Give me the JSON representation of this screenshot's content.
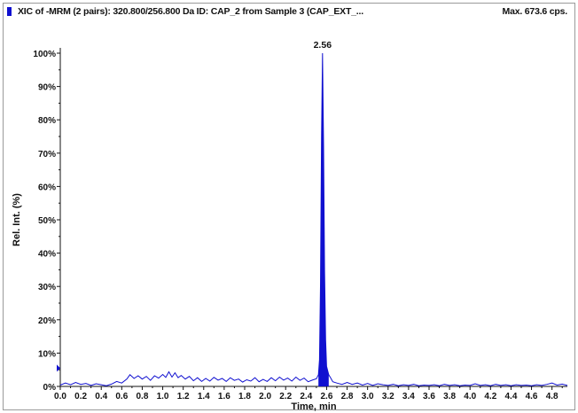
{
  "header": {
    "title": "XIC of -MRM (2 pairs): 320.800/256.800 Da ID: CAP_2 from Sample 3 (CAP_EXT_...",
    "max_text": "Max. 673.6 cps."
  },
  "colors": {
    "trace": "#1010d0",
    "axis": "#111111"
  },
  "chart_data": {
    "type": "line",
    "title": "XIC of -MRM (2 pairs): 320.800/256.800 Da ID: CAP_2 from Sample 3 (CAP_EXT_...",
    "xlabel": "Time, min",
    "ylabel": "Rel. Int. (%)",
    "xlim": [
      0.0,
      4.95
    ],
    "ylim": [
      0,
      100
    ],
    "x_ticks": [
      "0.0",
      "0.2",
      "0.4",
      "0.6",
      "0.8",
      "1.0",
      "1.2",
      "1.4",
      "1.6",
      "1.8",
      "2.0",
      "2.2",
      "2.4",
      "2.6",
      "2.8",
      "3.0",
      "3.2",
      "3.4",
      "3.6",
      "3.8",
      "4.0",
      "4.2",
      "4.4",
      "4.6",
      "4.8"
    ],
    "y_ticks": [
      "0%",
      "10%",
      "20%",
      "30%",
      "40%",
      "50%",
      "60%",
      "70%",
      "80%",
      "90%",
      "100%"
    ],
    "annotations": [
      {
        "text": "2.56",
        "x": 2.56,
        "y": 100
      }
    ],
    "max_intensity": "673.6 cps",
    "series": [
      {
        "points": [
          [
            0.0,
            0.4
          ],
          [
            0.05,
            1.0
          ],
          [
            0.1,
            0.5
          ],
          [
            0.15,
            1.2
          ],
          [
            0.2,
            0.6
          ],
          [
            0.25,
            0.9
          ],
          [
            0.3,
            0.3
          ],
          [
            0.35,
            0.8
          ],
          [
            0.4,
            0.5
          ],
          [
            0.45,
            0.2
          ],
          [
            0.5,
            0.7
          ],
          [
            0.55,
            1.5
          ],
          [
            0.6,
            1.0
          ],
          [
            0.65,
            2.2
          ],
          [
            0.68,
            3.5
          ],
          [
            0.72,
            2.4
          ],
          [
            0.76,
            3.2
          ],
          [
            0.8,
            2.2
          ],
          [
            0.84,
            3.0
          ],
          [
            0.88,
            1.8
          ],
          [
            0.92,
            3.2
          ],
          [
            0.96,
            2.5
          ],
          [
            1.0,
            3.6
          ],
          [
            1.03,
            2.7
          ],
          [
            1.06,
            4.4
          ],
          [
            1.09,
            2.8
          ],
          [
            1.12,
            4.1
          ],
          [
            1.15,
            2.6
          ],
          [
            1.18,
            3.3
          ],
          [
            1.22,
            2.2
          ],
          [
            1.26,
            3.0
          ],
          [
            1.3,
            1.7
          ],
          [
            1.34,
            2.6
          ],
          [
            1.38,
            1.5
          ],
          [
            1.42,
            2.4
          ],
          [
            1.46,
            1.6
          ],
          [
            1.5,
            2.7
          ],
          [
            1.54,
            1.9
          ],
          [
            1.58,
            2.4
          ],
          [
            1.62,
            1.5
          ],
          [
            1.66,
            2.6
          ],
          [
            1.7,
            1.8
          ],
          [
            1.74,
            2.2
          ],
          [
            1.78,
            1.3
          ],
          [
            1.82,
            2.0
          ],
          [
            1.86,
            1.6
          ],
          [
            1.9,
            2.6
          ],
          [
            1.94,
            1.4
          ],
          [
            1.98,
            2.1
          ],
          [
            2.02,
            1.5
          ],
          [
            2.06,
            2.6
          ],
          [
            2.1,
            1.7
          ],
          [
            2.14,
            2.8
          ],
          [
            2.18,
            1.9
          ],
          [
            2.22,
            2.5
          ],
          [
            2.26,
            1.6
          ],
          [
            2.3,
            2.8
          ],
          [
            2.34,
            1.8
          ],
          [
            2.38,
            2.5
          ],
          [
            2.42,
            1.4
          ],
          [
            2.46,
            1.9
          ],
          [
            2.5,
            2.3
          ],
          [
            2.52,
            3.5
          ],
          [
            2.53,
            8
          ],
          [
            2.54,
            30
          ],
          [
            2.55,
            75
          ],
          [
            2.56,
            100
          ],
          [
            2.57,
            72
          ],
          [
            2.58,
            35
          ],
          [
            2.59,
            14
          ],
          [
            2.6,
            6
          ],
          [
            2.62,
            3.5
          ],
          [
            2.64,
            2.5
          ],
          [
            2.66,
            1.4
          ],
          [
            2.7,
            1.0
          ],
          [
            2.75,
            0.6
          ],
          [
            2.8,
            1.2
          ],
          [
            2.85,
            0.6
          ],
          [
            2.9,
            1.0
          ],
          [
            2.95,
            0.4
          ],
          [
            3.0,
            0.9
          ],
          [
            3.05,
            0.3
          ],
          [
            3.1,
            0.8
          ],
          [
            3.15,
            0.5
          ],
          [
            3.2,
            0.3
          ],
          [
            3.25,
            0.6
          ],
          [
            3.3,
            0.2
          ],
          [
            3.35,
            0.5
          ],
          [
            3.4,
            0.3
          ],
          [
            3.45,
            0.6
          ],
          [
            3.5,
            0.2
          ],
          [
            3.55,
            0.4
          ],
          [
            3.6,
            0.3
          ],
          [
            3.65,
            0.5
          ],
          [
            3.7,
            0.2
          ],
          [
            3.75,
            0.6
          ],
          [
            3.8,
            0.3
          ],
          [
            3.85,
            0.5
          ],
          [
            3.9,
            0.2
          ],
          [
            3.95,
            0.4
          ],
          [
            4.0,
            0.3
          ],
          [
            4.05,
            0.8
          ],
          [
            4.1,
            0.3
          ],
          [
            4.15,
            0.5
          ],
          [
            4.2,
            0.2
          ],
          [
            4.25,
            0.6
          ],
          [
            4.3,
            0.3
          ],
          [
            4.35,
            0.5
          ],
          [
            4.4,
            0.2
          ],
          [
            4.45,
            0.5
          ],
          [
            4.5,
            0.3
          ],
          [
            4.55,
            0.4
          ],
          [
            4.6,
            0.2
          ],
          [
            4.65,
            0.5
          ],
          [
            4.7,
            0.3
          ],
          [
            4.75,
            0.6
          ],
          [
            4.8,
            1.0
          ],
          [
            4.85,
            0.4
          ],
          [
            4.9,
            0.7
          ],
          [
            4.95,
            0.3
          ]
        ]
      }
    ]
  }
}
